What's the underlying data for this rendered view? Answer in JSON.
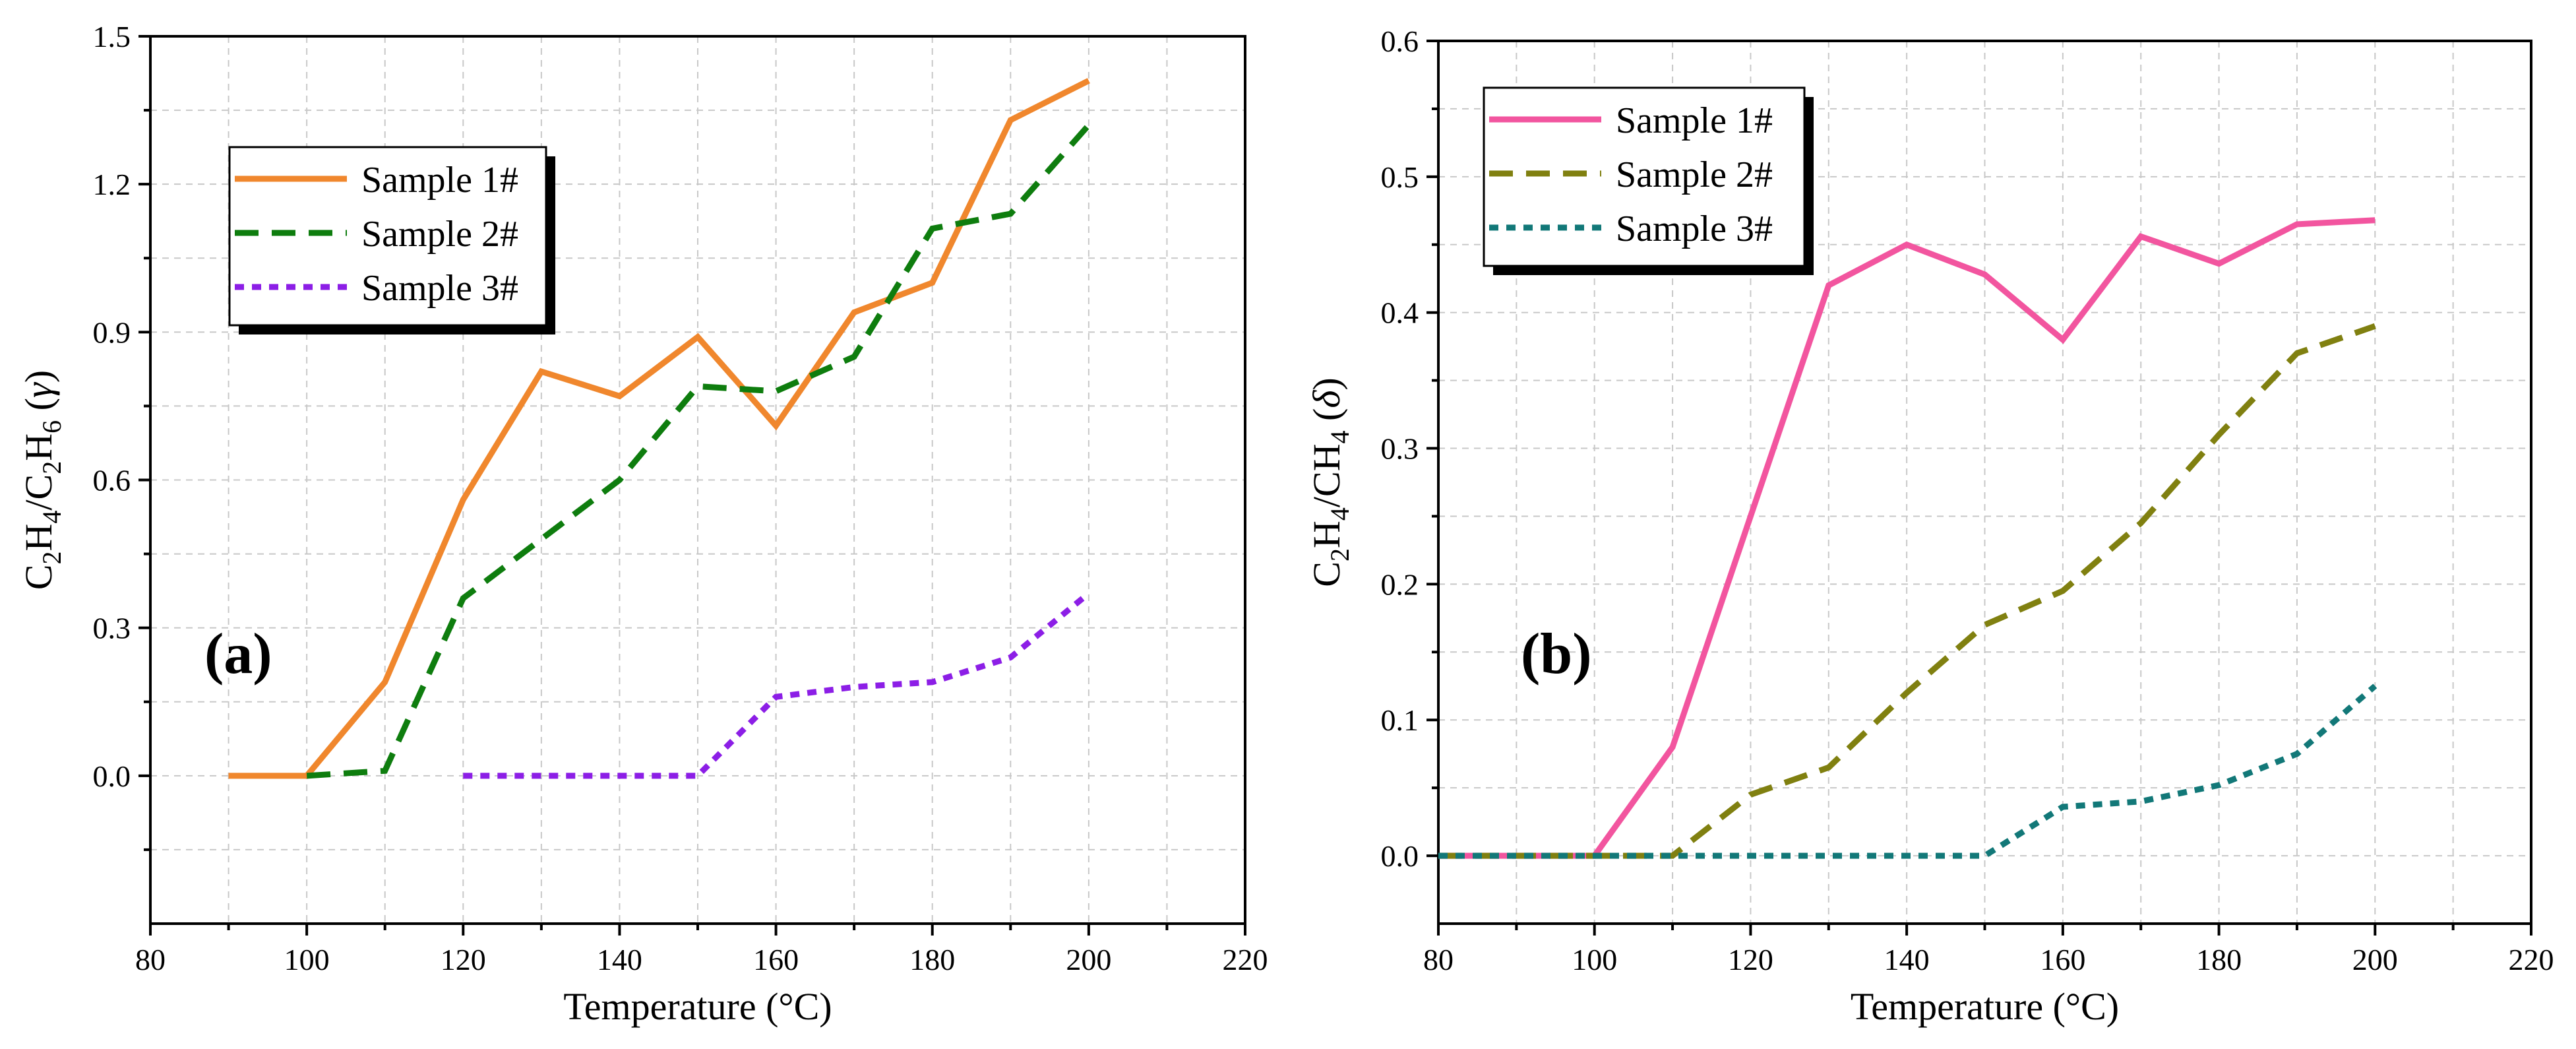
{
  "chart_data": [
    {
      "type": "line",
      "panel_label": "(a)",
      "xlabel": "Temperature (°C)",
      "ylabel": "C2H4/C2H6 (γ)",
      "ylabel_parts": [
        {
          "t": "C",
          "sub": false
        },
        {
          "t": "2",
          "sub": true
        },
        {
          "t": "H",
          "sub": false
        },
        {
          "t": "4",
          "sub": true
        },
        {
          "t": "/C",
          "sub": false
        },
        {
          "t": "2",
          "sub": true
        },
        {
          "t": "H",
          "sub": false
        },
        {
          "t": "6",
          "sub": true
        },
        {
          "t": " (",
          "sub": false
        },
        {
          "t": "γ",
          "sub": false,
          "italic": true
        },
        {
          "t": ")",
          "sub": false
        }
      ],
      "xlim": [
        80,
        220
      ],
      "ylim": [
        -0.3,
        1.5
      ],
      "xticks": [
        80,
        100,
        120,
        140,
        160,
        180,
        200,
        220
      ],
      "xtick_labels": [
        "80",
        "100",
        "120",
        "140",
        "160",
        "180",
        "200",
        "220"
      ],
      "yticks": [
        0.0,
        0.3,
        0.6,
        0.9,
        1.2,
        1.5
      ],
      "ytick_labels": [
        "0.0",
        "0.3",
        "0.6",
        "0.9",
        "1.2",
        "1.5"
      ],
      "grid": true,
      "legend_position": "upper-left",
      "series": [
        {
          "name": "Sample 1#",
          "color": "#f0872d",
          "style": "solid",
          "x": [
            90,
            100,
            110,
            120,
            130,
            140,
            150,
            160,
            170,
            180,
            190,
            200
          ],
          "y": [
            0.0,
            0.0,
            0.19,
            0.56,
            0.82,
            0.77,
            0.89,
            0.71,
            0.94,
            1.0,
            1.33,
            1.41
          ]
        },
        {
          "name": "Sample 2#",
          "color": "#0e7d0e",
          "style": "dashed",
          "x": [
            100,
            110,
            120,
            130,
            140,
            150,
            160,
            170,
            180,
            190,
            200
          ],
          "y": [
            0.0,
            0.01,
            0.36,
            0.48,
            0.6,
            0.79,
            0.78,
            0.85,
            1.11,
            1.14,
            1.32
          ]
        },
        {
          "name": "Sample 3#",
          "color": "#8c1ee6",
          "style": "dotted",
          "x": [
            120,
            130,
            140,
            150,
            160,
            170,
            180,
            190,
            200
          ],
          "y": [
            0.0,
            0.0,
            0.0,
            0.0,
            0.16,
            0.18,
            0.19,
            0.24,
            0.37
          ]
        }
      ]
    },
    {
      "type": "line",
      "panel_label": "(b)",
      "xlabel": "Temperature (°C)",
      "ylabel": "C2H4/CH4 (δ)",
      "ylabel_parts": [
        {
          "t": "C",
          "sub": false
        },
        {
          "t": "2",
          "sub": true
        },
        {
          "t": "H",
          "sub": false
        },
        {
          "t": "4",
          "sub": true
        },
        {
          "t": "/CH",
          "sub": false
        },
        {
          "t": "4",
          "sub": true
        },
        {
          "t": " (",
          "sub": false
        },
        {
          "t": "δ",
          "sub": false,
          "italic": true
        },
        {
          "t": ")",
          "sub": false
        }
      ],
      "xlim": [
        80,
        220
      ],
      "ylim": [
        -0.05,
        0.6
      ],
      "xticks": [
        80,
        100,
        120,
        140,
        160,
        180,
        200,
        220
      ],
      "xtick_labels": [
        "80",
        "100",
        "120",
        "140",
        "160",
        "180",
        "200",
        "220"
      ],
      "yticks": [
        0.0,
        0.1,
        0.2,
        0.3,
        0.4,
        0.5,
        0.6
      ],
      "ytick_labels": [
        "0.0",
        "0.1",
        "0.2",
        "0.3",
        "0.4",
        "0.5",
        "0.6"
      ],
      "grid": true,
      "legend_position": "upper-left",
      "series": [
        {
          "name": "Sample 1#",
          "color": "#f2559f",
          "style": "solid",
          "x": [
            80,
            90,
            100,
            110,
            120,
            130,
            140,
            150,
            160,
            170,
            180,
            190,
            200
          ],
          "y": [
            0.0,
            0.0,
            0.0,
            0.08,
            0.25,
            0.42,
            0.45,
            0.428,
            0.38,
            0.456,
            0.436,
            0.465,
            0.468
          ]
        },
        {
          "name": "Sample 2#",
          "color": "#808010",
          "style": "dashed",
          "x": [
            80,
            90,
            100,
            110,
            120,
            130,
            140,
            150,
            160,
            170,
            180,
            190,
            200
          ],
          "y": [
            0.0,
            0.0,
            0.0,
            0.0,
            0.045,
            0.065,
            0.12,
            0.17,
            0.195,
            0.245,
            0.31,
            0.37,
            0.39
          ]
        },
        {
          "name": "Sample 3#",
          "color": "#127878",
          "style": "dotted",
          "x": [
            80,
            90,
            100,
            110,
            120,
            130,
            140,
            150,
            160,
            170,
            180,
            190,
            200
          ],
          "y": [
            0.0,
            0.0,
            0.0,
            0.0,
            0.0,
            0.0,
            0.0,
            0.0,
            0.036,
            0.04,
            0.052,
            0.075,
            0.125
          ]
        }
      ]
    }
  ]
}
